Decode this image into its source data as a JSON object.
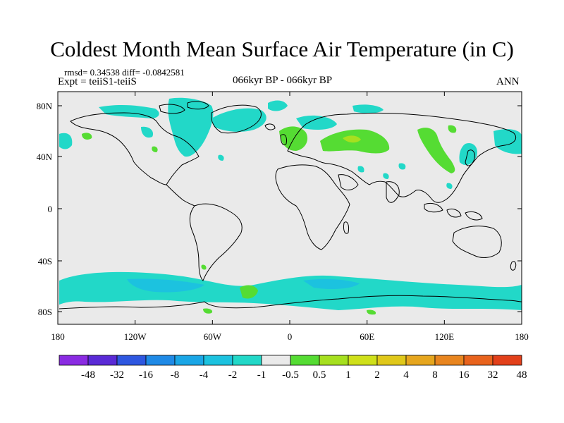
{
  "title": "Coldest Month Mean Surface Air Temperature (in C)",
  "stats": "rmsd= 0.34538  diff= -0.0842581",
  "expt": "Expt = teiiS1-teiiS",
  "period": "066kyr BP - 066kyr BP",
  "season": "ANN",
  "x_ticks": [
    "180",
    "120W",
    "60W",
    "0",
    "60E",
    "120E",
    "180"
  ],
  "y_ticks": [
    "80N",
    "40N",
    "0",
    "40S",
    "80S"
  ],
  "colorbar": {
    "colors": [
      "#8a2be2",
      "#5a2ad6",
      "#2e57e0",
      "#1f8ae6",
      "#1aa6e6",
      "#1cc2df",
      "#22d8c8",
      "#eaeaea",
      "#55dc33",
      "#a6e01f",
      "#cfe01a",
      "#e0c81a",
      "#e6a61e",
      "#e8851f",
      "#e8631d",
      "#e2401a"
    ],
    "labels": [
      "-48",
      "-32",
      "-16",
      "-8",
      "-4",
      "-2",
      "-1",
      "-0.5",
      "0.5",
      "1",
      "2",
      "4",
      "8",
      "16",
      "32",
      "48"
    ]
  },
  "map": {
    "land_color": "#eaeaea",
    "neg_small_color": "#22d8c8",
    "neg_mid_color": "#1cc2df",
    "pos_small_color": "#55dc33",
    "pos_mid_color": "#a6e01f"
  }
}
